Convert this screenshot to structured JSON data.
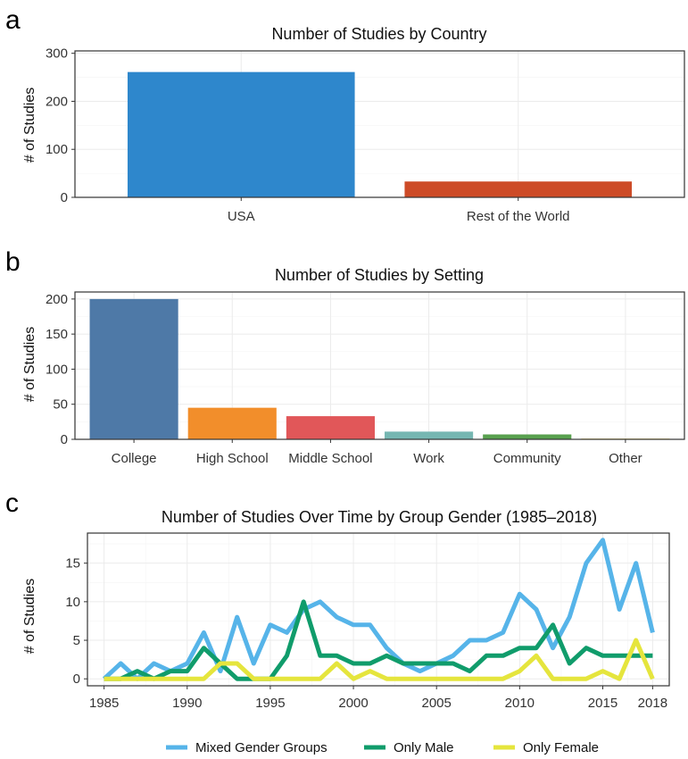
{
  "panels": {
    "a": "a",
    "b": "b",
    "c": "c"
  },
  "chart_data": [
    {
      "id": "a",
      "type": "bar",
      "title": "Number of Studies by Country",
      "ylabel": "# of Studies",
      "xlabel": "",
      "categories": [
        "USA",
        "Rest of the World"
      ],
      "values": [
        261,
        33
      ],
      "colors": [
        "#2e87cc",
        "#cd4b27"
      ],
      "ylim": [
        0,
        305
      ],
      "yticks": [
        0,
        100,
        200,
        300
      ]
    },
    {
      "id": "b",
      "type": "bar",
      "title": "Number of Studies by Setting",
      "ylabel": "# of Studies",
      "xlabel": "",
      "categories": [
        "College",
        "High School",
        "Middle School",
        "Work",
        "Community",
        "Other"
      ],
      "values": [
        200,
        45,
        33,
        11,
        7,
        1
      ],
      "colors": [
        "#4e79a7",
        "#f28e2b",
        "#e15759",
        "#76b7b2",
        "#59a14f",
        "#edc948"
      ],
      "ylim": [
        0,
        210
      ],
      "yticks": [
        0,
        50,
        100,
        150,
        200
      ]
    },
    {
      "id": "c",
      "type": "line",
      "title": "Number of Studies Over Time by Group Gender (1985–2018)",
      "ylabel": "# of Studies",
      "xlabel": "",
      "x": [
        1985,
        1986,
        1987,
        1988,
        1989,
        1990,
        1991,
        1992,
        1993,
        1994,
        1995,
        1996,
        1997,
        1998,
        1999,
        2000,
        2001,
        2002,
        2003,
        2004,
        2005,
        2006,
        2007,
        2008,
        2009,
        2010,
        2011,
        2012,
        2013,
        2014,
        2015,
        2016,
        2017,
        2018
      ],
      "series": [
        {
          "name": "Mixed Gender Groups",
          "color": "#56b4e9",
          "values": [
            0,
            2,
            0,
            2,
            1,
            2,
            6,
            1,
            8,
            2,
            7,
            6,
            9,
            10,
            8,
            7,
            7,
            4,
            2,
            1,
            2,
            3,
            5,
            5,
            6,
            11,
            9,
            4,
            8,
            15,
            18,
            9,
            15,
            6
          ]
        },
        {
          "name": "Only Male",
          "color": "#109c6b",
          "values": [
            0,
            0,
            1,
            0,
            1,
            1,
            4,
            2,
            0,
            0,
            0,
            3,
            10,
            3,
            3,
            2,
            2,
            3,
            2,
            2,
            2,
            2,
            1,
            3,
            3,
            4,
            4,
            7,
            2,
            4,
            3,
            3,
            3,
            3
          ]
        },
        {
          "name": "Only Female",
          "color": "#e5e53d",
          "values": [
            0,
            0,
            0,
            0,
            0,
            0,
            0,
            2,
            2,
            0,
            0,
            0,
            0,
            0,
            2,
            0,
            1,
            0,
            0,
            0,
            0,
            0,
            0,
            0,
            0,
            1,
            3,
            0,
            0,
            0,
            1,
            0,
            5,
            0
          ]
        }
      ],
      "xlim": [
        1984,
        2019
      ],
      "ylim": [
        -0.9,
        18.9
      ],
      "xticks": [
        1985,
        1990,
        1995,
        2000,
        2005,
        2010,
        2015,
        2018
      ],
      "yticks": [
        0,
        5,
        10,
        15
      ],
      "legend_position": "bottom"
    }
  ]
}
